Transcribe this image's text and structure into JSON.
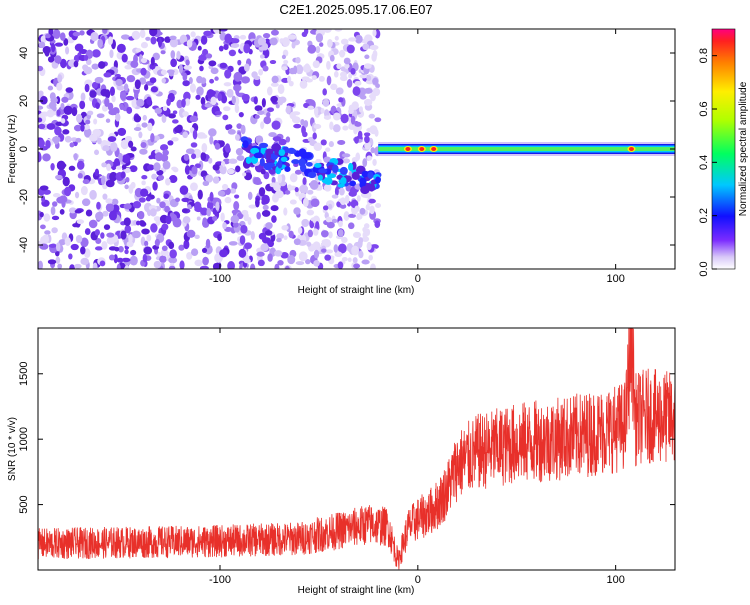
{
  "figure": {
    "title": "C2E1.2025.095.17.06.E07"
  },
  "colors": {
    "snr_series": "#e8302a",
    "spectrogram_low": "#5b20d8",
    "axis": "#000000"
  },
  "chart_data": [
    {
      "type": "heatmap",
      "title": "",
      "xlabel": "Height of straight line (km)",
      "ylabel": "Frequency (Hz)",
      "xlim": [
        -192,
        130
      ],
      "ylim": [
        -50,
        50
      ],
      "x_ticks": [
        -100,
        0,
        100
      ],
      "x_tick_labels": [
        "-100",
        "0",
        "100"
      ],
      "y_ticks": [
        -40,
        -20,
        0,
        20,
        40
      ],
      "y_tick_labels": [
        "-40",
        "-20",
        "0",
        "20",
        "40"
      ],
      "colorbar": {
        "label": "Normalized spectral amplitude",
        "range": [
          0,
          0.9
        ],
        "ticks": [
          0.0,
          0.2,
          0.4,
          0.6,
          0.8
        ],
        "tick_labels": [
          "0.0",
          "0.2",
          "0.4",
          "0.6",
          "0.8"
        ],
        "colormap": "rainbow"
      },
      "features": {
        "noise_region_x": [
          -192,
          -20
        ],
        "carrier_frequency_hz": 0,
        "carrier_x": [
          -20,
          130
        ],
        "carrier_typical_amplitude": 0.5,
        "peak_spots_x": [
          -5,
          2,
          8,
          108
        ]
      }
    },
    {
      "type": "line",
      "title": "",
      "xlabel": "Height of straight line (km)",
      "ylabel": "SNR (10 * v/v)",
      "xlim": [
        -192,
        130
      ],
      "ylim": [
        0,
        1850
      ],
      "x_ticks": [
        -100,
        0,
        100
      ],
      "x_tick_labels": [
        "-100",
        "0",
        "100"
      ],
      "y_ticks": [
        500,
        1000,
        1500
      ],
      "y_tick_labels": [
        "500",
        "1000",
        "1500"
      ],
      "series": [
        {
          "name": "",
          "x": [
            -192,
            -150,
            -100,
            -60,
            -40,
            -25,
            -15,
            -10,
            -5,
            0,
            5,
            10,
            15,
            20,
            30,
            50,
            70,
            90,
            100,
            105,
            108,
            110,
            115,
            130
          ],
          "y": [
            200,
            210,
            220,
            240,
            300,
            350,
            330,
            70,
            320,
            390,
            430,
            500,
            620,
            800,
            900,
            970,
            1000,
            1050,
            1080,
            1110,
            1800,
            1150,
            1180,
            1160
          ]
        }
      ]
    }
  ]
}
